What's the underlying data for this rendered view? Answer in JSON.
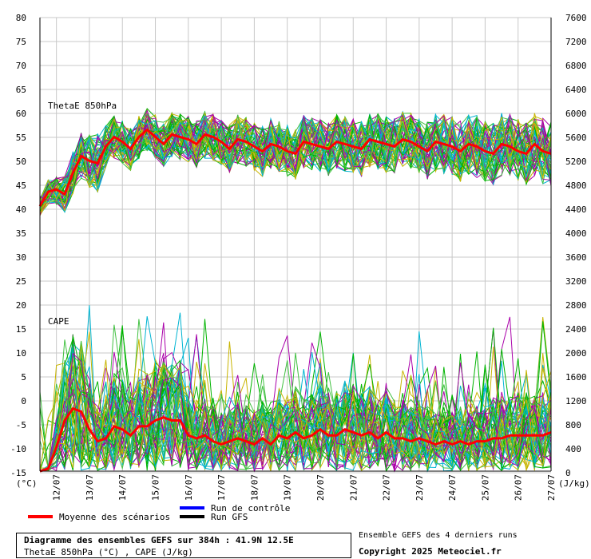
{
  "chart_data": {
    "type": "line",
    "left_axis": {
      "ticks": [
        "80",
        "75",
        "70",
        "65",
        "60",
        "55",
        "50",
        "45",
        "40",
        "35",
        "30",
        "25",
        "20",
        "15",
        "10",
        "5",
        "0",
        "-5",
        "-10",
        "-15"
      ],
      "unit": "(°C)",
      "min": -15,
      "max": 80
    },
    "right_axis": {
      "ticks": [
        "7600",
        "7200",
        "6800",
        "6400",
        "6000",
        "5600",
        "5200",
        "4800",
        "4400",
        "4000",
        "3600",
        "3200",
        "2800",
        "2400",
        "2000",
        "1600",
        "1200",
        "800",
        "400",
        "0"
      ],
      "unit": "(J/kg)",
      "min": 0,
      "max": 7600
    },
    "x_ticks": [
      "12/07",
      "13/07",
      "14/07",
      "15/07",
      "16/07",
      "17/07",
      "18/07",
      "19/07",
      "20/07",
      "21/07",
      "22/07",
      "23/07",
      "24/07",
      "25/07",
      "26/07",
      "27/07"
    ],
    "x_range_days": [
      11.5,
      27.0
    ],
    "grid": true,
    "panels": {
      "thetae_label": "ThetaE 850hPa",
      "cape_label": "CAPE"
    },
    "series": [
      {
        "name": "Moyenne des scénarios",
        "color": "#ff0000",
        "thetae_mean": {
          "x": [
            11.5,
            11.75,
            12.0,
            12.25,
            12.5,
            12.75,
            13.0,
            13.25,
            13.5,
            13.75,
            14.0,
            14.25,
            14.5,
            14.75,
            15.0,
            15.25,
            15.5,
            15.75,
            16.0,
            16.25,
            16.5,
            16.75,
            17.0,
            17.25,
            17.5,
            17.75,
            18.0,
            18.25,
            18.5,
            18.75,
            19.0,
            19.25,
            19.5,
            19.75,
            20.0,
            20.25,
            20.5,
            20.75,
            21.0,
            21.25,
            21.5,
            21.75,
            22.0,
            22.25,
            22.5,
            22.75,
            23.0,
            23.25,
            23.5,
            23.75,
            24.0,
            24.25,
            24.5,
            24.75,
            25.0,
            25.25,
            25.5,
            25.75,
            26.0,
            26.25,
            26.5,
            26.75,
            27.0
          ],
          "y": [
            40.5,
            43.5,
            44,
            43,
            47.5,
            51,
            50,
            49.5,
            53,
            55,
            54,
            52.5,
            55,
            56.5,
            55,
            53.5,
            55.5,
            55,
            54.5,
            53.5,
            55.5,
            55,
            54,
            52.5,
            54.5,
            54,
            53,
            52,
            53.5,
            53,
            52,
            51.5,
            54,
            53.5,
            53,
            52.5,
            54,
            53.5,
            53,
            52.5,
            54.5,
            54,
            53.5,
            53,
            54.5,
            54,
            53,
            52,
            54,
            53.5,
            53,
            52,
            53.5,
            53,
            52,
            51.5,
            53.5,
            53,
            52,
            51.5,
            53.5,
            52,
            51.5
          ]
        },
        "cape_mean_jkg": {
          "x": [
            11.5,
            11.75,
            12.0,
            12.25,
            12.5,
            12.75,
            13.0,
            13.25,
            13.5,
            13.75,
            14.0,
            14.25,
            14.5,
            14.75,
            15.0,
            15.25,
            15.5,
            15.75,
            16.0,
            16.25,
            16.5,
            16.75,
            17.0,
            17.25,
            17.5,
            17.75,
            18.0,
            18.25,
            18.5,
            18.75,
            19.0,
            19.25,
            19.5,
            19.75,
            20.0,
            20.25,
            20.5,
            20.75,
            21.0,
            21.25,
            21.5,
            21.75,
            22.0,
            22.25,
            22.5,
            22.75,
            23.0,
            23.25,
            23.5,
            23.75,
            24.0,
            24.25,
            24.5,
            24.75,
            25.0,
            25.25,
            25.5,
            25.75,
            26.0,
            26.25,
            26.5,
            26.75,
            27.0
          ],
          "y": [
            0,
            40,
            400,
            850,
            1050,
            1000,
            700,
            500,
            550,
            750,
            700,
            600,
            750,
            750,
            850,
            900,
            850,
            850,
            600,
            550,
            600,
            500,
            450,
            500,
            550,
            500,
            450,
            550,
            450,
            600,
            550,
            650,
            550,
            600,
            700,
            600,
            600,
            700,
            650,
            600,
            650,
            550,
            650,
            550,
            550,
            500,
            550,
            500,
            450,
            500,
            450,
            500,
            450,
            500,
            500,
            550,
            550,
            600,
            600,
            600,
            600,
            600,
            650
          ]
        }
      },
      {
        "name": "Run de contrôle",
        "color": "#0000ff"
      },
      {
        "name": "Run GFS",
        "color": "#000000"
      }
    ],
    "ensemble_colors": [
      "#00b400",
      "#00b4d2",
      "#c8b400",
      "#aa00aa",
      "#40c040"
    ]
  },
  "info": {
    "title": "Diagramme des ensembles GEFS sur 384h : 41.9N 12.5E",
    "subtitle": "ThetaE 850hPa (°C) , CAPE (J/kg)",
    "runs_note": "Ensemble GEFS des 4 derniers runs",
    "copyright": "Copyright 2025 Meteociel.fr"
  }
}
